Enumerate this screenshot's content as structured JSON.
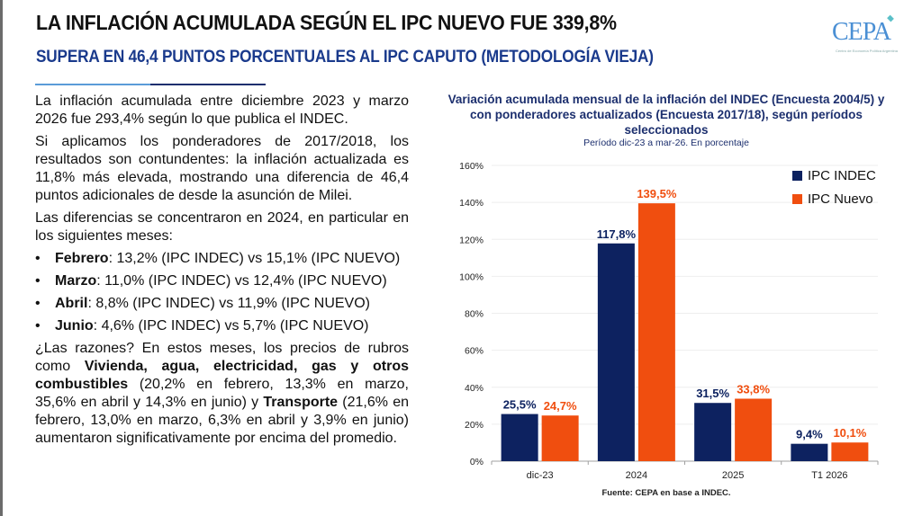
{
  "header": {
    "title": "LA INFLACIÓN ACUMULADA SEGÚN EL IPC NUEVO FUE 339,8%",
    "subtitle": "SUPERA EN 46,4 PUNTOS PORCENTUALES AL IPC CAPUTO (METODOLOGÍA VIEJA)",
    "logo_text": "CEPA",
    "logo_subtext": "Centro de Economía Política Argentina"
  },
  "body": {
    "p1": "La inflación acumulada entre diciembre 2023 y marzo 2026 fue 293,4% según lo que publica el INDEC.",
    "p2": "Si aplicamos los ponderadores de 2017/2018, los resultados son contundentes: la inflación actualizada es 11,8% más elevada, mostrando una diferencia de 46,4 puntos adicionales de desde la asunción de Milei.",
    "p3": "Las diferencias se concentraron en 2024, en particular en los siguientes meses:",
    "bullets": [
      {
        "month": "Febrero",
        "text": ": 13,2% (IPC INDEC) vs 15,1% (IPC NUEVO)"
      },
      {
        "month": "Marzo",
        "text": ": 11,0% (IPC INDEC) vs 12,4% (IPC NUEVO)"
      },
      {
        "month": "Abril",
        "text": ": 8,8% (IPC INDEC) vs 11,9% (IPC NUEVO)"
      },
      {
        "month": "Junio",
        "text": ": 4,6% (IPC INDEC) vs 5,7% (IPC NUEVO)"
      }
    ],
    "p4_a": "¿Las razones? En estos meses, los precios de rubros como ",
    "p4_b": "Vivienda, agua, electricidad, gas y otros combustibles",
    "p4_c": " (20,2% en febrero, 13,3% en marzo, 35,6% en abril y 14,3% en junio) y ",
    "p4_d": "Transporte",
    "p4_e": " (21,6% en febrero, 13,0% en marzo, 6,3% en abril y 3,9% en junio) aumentaron significativamente por encima del promedio."
  },
  "chart_data": {
    "type": "bar",
    "title": "Variación acumulada mensual de la inflación del INDEC (Encuesta 2004/5) y con ponderadores actualizados (Encuesta 2017/18), según períodos seleccionados",
    "subtitle": "Período dic-23 a mar-26. En porcentaje",
    "categories": [
      "dic-23",
      "2024",
      "2025",
      "T1 2026"
    ],
    "series": [
      {
        "name": "IPC INDEC",
        "color": "#0d2260",
        "values": [
          25.5,
          117.8,
          31.5,
          9.4
        ],
        "labels": [
          "25,5%",
          "117,8%",
          "31,5%",
          "9,4%"
        ]
      },
      {
        "name": "IPC Nuevo",
        "color": "#f04e0f",
        "values": [
          24.7,
          139.5,
          33.8,
          10.1
        ],
        "labels": [
          "24,7%",
          "139,5%",
          "33,8%",
          "10,1%"
        ]
      }
    ],
    "ylim": [
      0,
      160
    ],
    "yticks": [
      0,
      20,
      40,
      60,
      80,
      100,
      120,
      140,
      160
    ],
    "ytick_labels": [
      "0%",
      "20%",
      "40%",
      "60%",
      "80%",
      "100%",
      "120%",
      "140%",
      "160%"
    ],
    "xlabel": "",
    "ylabel": "",
    "grid": true,
    "legend": "top-right",
    "source": "Fuente: CEPA en base a INDEC."
  }
}
